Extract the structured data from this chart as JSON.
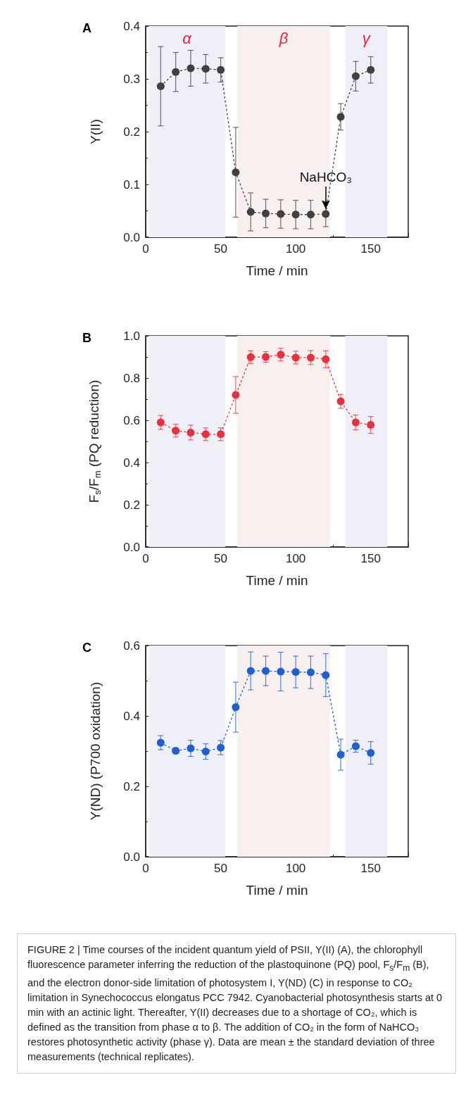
{
  "chart_data": [
    {
      "type": "line",
      "title": "A",
      "xlabel": "Time / min",
      "ylabel": "Y(II)",
      "marker": "circle",
      "line_style": "dashed",
      "x": [
        10,
        20,
        30,
        40,
        50,
        60,
        70,
        80,
        90,
        100,
        110,
        120,
        130,
        140,
        150
      ],
      "series": [
        {
          "color": "#404040",
          "values": [
            0.286,
            0.313,
            0.32,
            0.319,
            0.317,
            0.123,
            0.048,
            0.045,
            0.044,
            0.043,
            0.043,
            0.044,
            0.228,
            0.305,
            0.317
          ],
          "errors": [
            0.075,
            0.037,
            0.034,
            0.027,
            0.023,
            0.085,
            0.036,
            0.027,
            0.027,
            0.027,
            0.027,
            0.024,
            0.025,
            0.028,
            0.025
          ]
        }
      ],
      "xlim": [
        0,
        175
      ],
      "xticks": [
        0,
        50,
        100,
        150
      ],
      "ylim": [
        0,
        0.4
      ],
      "yticks": [
        {
          "value": 0,
          "label": "0.0"
        },
        {
          "value": 0.1,
          "label": "0.1"
        },
        {
          "value": 0.2,
          "label": "0.2"
        },
        {
          "value": 0.3,
          "label": "0.3"
        },
        {
          "value": 0.4,
          "label": "0.4"
        }
      ],
      "bands": [
        {
          "axis": "x",
          "from": 2,
          "to": 53,
          "label": "α",
          "color": "#eff0f7"
        },
        {
          "axis": "x",
          "from": 61,
          "to": 123,
          "label": "β",
          "color": "#f8f0ee"
        },
        {
          "axis": "x",
          "from": 133,
          "to": 161,
          "label": "γ",
          "color": "#eff0f7"
        }
      ],
      "annotations": [
        {
          "text": "NaHCO₃",
          "x": 120,
          "y": 0.044
        }
      ]
    },
    {
      "type": "line",
      "title": "B",
      "xlabel": "Time / min",
      "ylabel": "F$_{s}$/F$_{m}$ (PQ reduction)",
      "marker": "circle",
      "line_style": "dashed",
      "x": [
        10,
        20,
        30,
        40,
        50,
        60,
        70,
        80,
        90,
        100,
        110,
        120,
        130,
        140,
        150
      ],
      "series": [
        {
          "color": "#e8313c",
          "values": [
            0.59,
            0.551,
            0.542,
            0.534,
            0.534,
            0.72,
            0.899,
            0.9,
            0.911,
            0.897,
            0.897,
            0.889,
            0.69,
            0.59,
            0.578
          ],
          "errors": [
            0.033,
            0.03,
            0.035,
            0.03,
            0.03,
            0.087,
            0.03,
            0.025,
            0.03,
            0.03,
            0.033,
            0.04,
            0.033,
            0.035,
            0.04
          ]
        }
      ],
      "xlim": [
        0,
        175
      ],
      "xticks": [
        0,
        50,
        100,
        150
      ],
      "ylim": [
        0,
        1
      ],
      "yticks": [
        {
          "value": 0,
          "label": "0.0"
        },
        {
          "value": 0.2,
          "label": "0.2"
        },
        {
          "value": 0.4,
          "label": "0.4"
        },
        {
          "value": 0.6,
          "label": "0.6"
        },
        {
          "value": 0.8,
          "label": "0.8"
        },
        {
          "value": 1,
          "label": "1.0"
        }
      ],
      "bands": [
        {
          "axis": "x",
          "from": 2,
          "to": 53,
          "color": "#eff0f7"
        },
        {
          "axis": "x",
          "from": 61,
          "to": 123,
          "color": "#f8f0ee"
        },
        {
          "axis": "x",
          "from": 133,
          "to": 161,
          "color": "#eff0f7"
        }
      ]
    },
    {
      "type": "line",
      "title": "C",
      "xlabel": "Time / min",
      "ylabel": "Y(ND) (P700 oxidation)",
      "marker": "circle",
      "line_style": "dashed",
      "x": [
        10,
        20,
        30,
        40,
        50,
        60,
        70,
        80,
        90,
        100,
        110,
        120,
        130,
        140,
        150
      ],
      "series": [
        {
          "color": "#1f5fd6",
          "values": [
            0.324,
            0.301,
            0.308,
            0.299,
            0.31,
            0.425,
            0.528,
            0.528,
            0.526,
            0.525,
            0.524,
            0.516,
            0.29,
            0.314,
            0.295
          ],
          "errors": [
            0.02,
            0.008,
            0.023,
            0.022,
            0.02,
            0.071,
            0.054,
            0.042,
            0.055,
            0.045,
            0.046,
            0.061,
            0.044,
            0.017,
            0.032
          ]
        }
      ],
      "xlim": [
        0,
        175
      ],
      "xticks": [
        0,
        50,
        100,
        150
      ],
      "ylim": [
        0,
        0.6
      ],
      "yticks": [
        {
          "value": 0,
          "label": "0.0"
        },
        {
          "value": 0.2,
          "label": "0.2"
        },
        {
          "value": 0.4,
          "label": "0.4"
        },
        {
          "value": 0.6,
          "label": "0.6"
        }
      ],
      "bands": [
        {
          "axis": "x",
          "from": 2,
          "to": 53,
          "color": "#eff0f7"
        },
        {
          "axis": "x",
          "from": 61,
          "to": 123,
          "color": "#f8f0ee"
        },
        {
          "axis": "x",
          "from": 133,
          "to": 161,
          "color": "#eff0f7"
        }
      ],
      "annotations": [
        "FIGURE 2 | Time courses of the incident quantum yield of PSII, Y(II) (A), the chlorophyll fluorescence parameter inferring the reduction of the plastoquinone (PQ) pool, F$_{s}$/F$_{m}$ (B), and the electron donor-side limitation of photosystem I, Y(ND) (C) in response to CO₂ limitation in Synechococcus elongatus PCC 7942. Cyanobacterial photosynthesis starts at 0 min with an actinic light. Thereafter, Y(II) decreases due to a shortage of CO₂, which is defined as the transition from phase α to β. The addition of CO₂ in the form of NaHCO₃ restores photosynthetic activity (phase γ). Data are mean ± the standard deviation of three measurements (technical replicates)."
      ]
    }
  ]
}
